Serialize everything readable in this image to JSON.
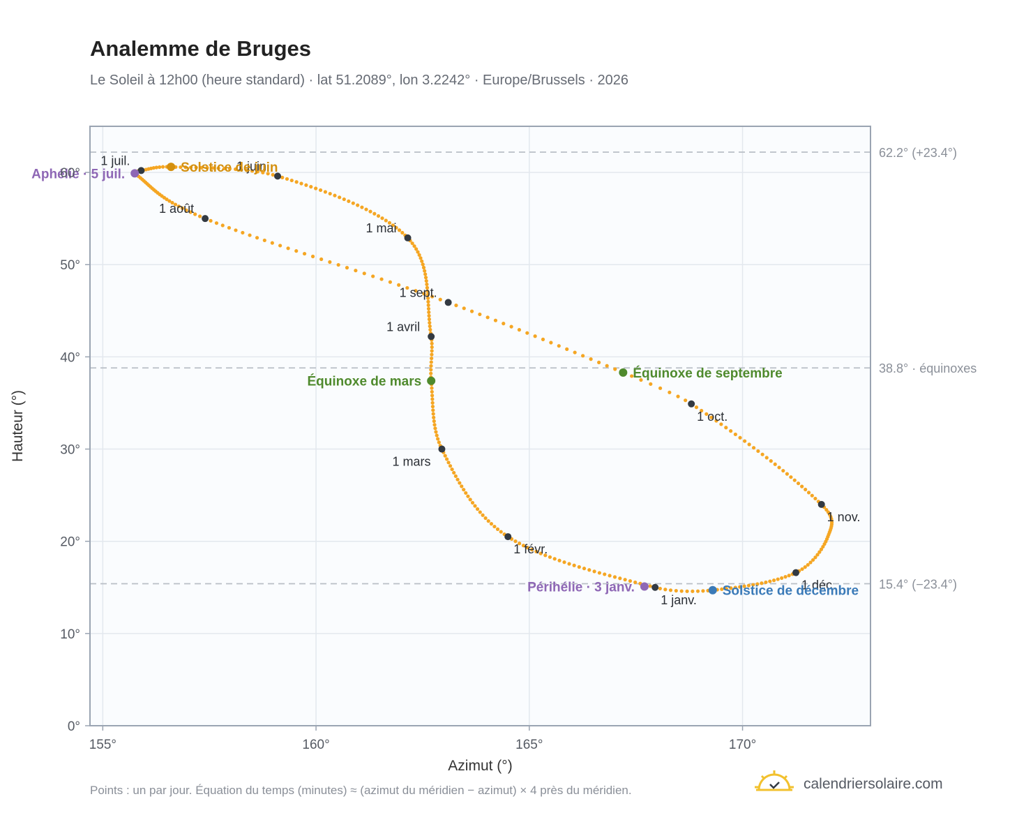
{
  "title": "Analemme de Bruges",
  "subtitle": "Le Soleil à 12h00 (heure standard) · lat 51.2089°, lon 3.2242° · Europe/Brussels · 2026",
  "footnote": "Points : un par jour. Équation du temps (minutes) ≈ (azimut du méridien − azimut) × 4 près du méridien.",
  "brand": {
    "name": "calendriersolaire.com",
    "logo_icon": "sun-calendar-icon"
  },
  "colors": {
    "curve": "#f5a623",
    "month_dot": "#333a42",
    "solstice_june": "#d4900f",
    "equinox": "#4f8a2d",
    "solstice_december": "#3a7ab8",
    "apsis": "#8e67b5",
    "reference_line": "#b9bec6",
    "plot_bg": "#fafcfe",
    "grid": "#e3e8ee",
    "frame": "#9aa4b2"
  },
  "chart_data": {
    "type": "scatter",
    "xlabel": "Azimut (°)",
    "ylabel": "Hauteur (°)",
    "xlim": [
      154.7,
      173.0
    ],
    "ylim": [
      0,
      65
    ],
    "xticks": [
      155,
      160,
      165,
      170
    ],
    "yticks": [
      0,
      10,
      20,
      30,
      40,
      50,
      60
    ],
    "x_tick_labels": [
      "155°",
      "160°",
      "165°",
      "170°"
    ],
    "y_tick_labels": [
      "0°",
      "10°",
      "20°",
      "30°",
      "40°",
      "50°",
      "60°"
    ],
    "grid": true,
    "curve_anchors": [
      {
        "day": 1,
        "az": 167.95,
        "alt": 15.0
      },
      {
        "day": 32,
        "az": 164.5,
        "alt": 20.5
      },
      {
        "day": 60,
        "az": 162.95,
        "alt": 30.0
      },
      {
        "day": 79,
        "az": 162.7,
        "alt": 37.4
      },
      {
        "day": 91,
        "az": 162.7,
        "alt": 42.2
      },
      {
        "day": 121,
        "az": 162.15,
        "alt": 52.9
      },
      {
        "day": 152,
        "az": 159.1,
        "alt": 59.6
      },
      {
        "day": 172,
        "az": 156.6,
        "alt": 60.6
      },
      {
        "day": 182,
        "az": 155.9,
        "alt": 60.2
      },
      {
        "day": 186,
        "az": 155.75,
        "alt": 59.9
      },
      {
        "day": 213,
        "az": 157.4,
        "alt": 55.0
      },
      {
        "day": 244,
        "az": 163.1,
        "alt": 45.9
      },
      {
        "day": 266,
        "az": 167.2,
        "alt": 38.3
      },
      {
        "day": 274,
        "az": 168.8,
        "alt": 34.9
      },
      {
        "day": 305,
        "az": 171.85,
        "alt": 24.0
      },
      {
        "day": 320,
        "az": 172.0,
        "alt": 20.5
      },
      {
        "day": 335,
        "az": 171.25,
        "alt": 16.6
      },
      {
        "day": 355,
        "az": 169.3,
        "alt": 14.7
      },
      {
        "day": 366,
        "az": 167.95,
        "alt": 15.0
      }
    ],
    "month_markers": [
      {
        "label": "1 janv.",
        "az": 167.95,
        "alt": 15.0,
        "label_pos": "below-right"
      },
      {
        "label": "1 févr.",
        "az": 164.5,
        "alt": 20.5,
        "label_pos": "below-right"
      },
      {
        "label": "1 mars",
        "az": 162.95,
        "alt": 30.0,
        "label_pos": "below-left"
      },
      {
        "label": "1 avril",
        "az": 162.7,
        "alt": 42.2,
        "label_pos": "above-left"
      },
      {
        "label": "1 mai",
        "az": 162.15,
        "alt": 52.9,
        "label_pos": "above-left"
      },
      {
        "label": "1 juin",
        "az": 159.1,
        "alt": 59.6,
        "label_pos": "above-left"
      },
      {
        "label": "1 juil.",
        "az": 155.9,
        "alt": 60.2,
        "label_pos": "above-left"
      },
      {
        "label": "1 août",
        "az": 157.4,
        "alt": 55.0,
        "label_pos": "above-left"
      },
      {
        "label": "1 sept.",
        "az": 163.1,
        "alt": 45.9,
        "label_pos": "above-left"
      },
      {
        "label": "1 oct.",
        "az": 168.8,
        "alt": 34.9,
        "label_pos": "below-right"
      },
      {
        "label": "1 nov.",
        "az": 171.85,
        "alt": 24.0,
        "label_pos": "below-right"
      },
      {
        "label": "1 déc.",
        "az": 171.25,
        "alt": 16.6,
        "label_pos": "below-right"
      }
    ],
    "events": [
      {
        "label": "Solstice de juin",
        "az": 156.6,
        "alt": 60.6,
        "color_key": "solstice_june",
        "label_pos": "right"
      },
      {
        "label": "Équinoxe de mars",
        "az": 162.7,
        "alt": 37.4,
        "color_key": "equinox",
        "label_pos": "left"
      },
      {
        "label": "Équinoxe de septembre",
        "az": 167.2,
        "alt": 38.3,
        "color_key": "equinox",
        "label_pos": "right"
      },
      {
        "label": "Solstice de décembre",
        "az": 169.3,
        "alt": 14.7,
        "color_key": "solstice_december",
        "label_pos": "right"
      },
      {
        "label": "Aphélie · 5 juil.",
        "az": 155.75,
        "alt": 59.9,
        "color_key": "apsis",
        "label_pos": "left"
      },
      {
        "label": "Périhélie · 3 janv.",
        "az": 167.7,
        "alt": 15.1,
        "color_key": "apsis",
        "label_pos": "left"
      }
    ],
    "reference_lines": [
      {
        "alt": 62.2,
        "label": "62.2° (+23.4°)"
      },
      {
        "alt": 38.8,
        "label": "38.8° · équinoxes"
      },
      {
        "alt": 15.4,
        "label": "15.4° (−23.4°)"
      }
    ]
  }
}
